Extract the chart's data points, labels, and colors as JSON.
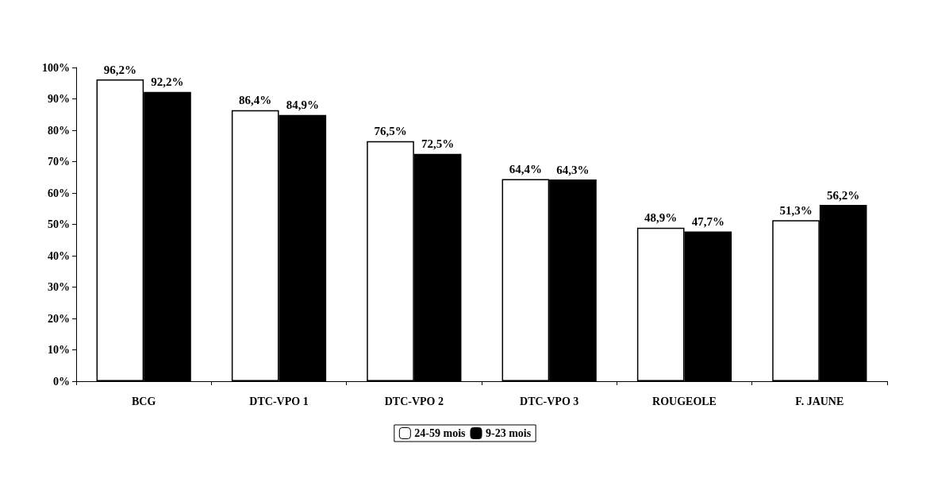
{
  "chart_data": {
    "type": "bar",
    "categories": [
      "BCG",
      "DTC-VPO 1",
      "DTC-VPO 2",
      "DTC-VPO 3",
      "ROUGEOLE",
      "F. JAUNE"
    ],
    "series": [
      {
        "name": "24-59 mois",
        "color": "#ffffff",
        "values": [
          96.2,
          86.4,
          76.5,
          64.4,
          48.9,
          51.3
        ],
        "value_labels": [
          "96,2%",
          "86,4%",
          "76,5%",
          "64,4%",
          "48,9%",
          "51,3%"
        ]
      },
      {
        "name": "9-23 mois",
        "color": "#000000",
        "values": [
          92.2,
          84.9,
          72.5,
          64.3,
          47.7,
          56.2
        ],
        "value_labels": [
          "92,2%",
          "84,9%",
          "72,5%",
          "64,3%",
          "47,7%",
          "56,2%"
        ]
      }
    ],
    "ylim": [
      0,
      100
    ],
    "yticks": [
      {
        "value": 0,
        "label": "0%"
      },
      {
        "value": 10,
        "label": "10%"
      },
      {
        "value": 20,
        "label": "20%"
      },
      {
        "value": 30,
        "label": "30%"
      },
      {
        "value": 40,
        "label": "40%"
      },
      {
        "value": 50,
        "label": "50%"
      },
      {
        "value": 60,
        "label": "60%"
      },
      {
        "value": 70,
        "label": "70%"
      },
      {
        "value": 80,
        "label": "80%"
      },
      {
        "value": 90,
        "label": "90%"
      },
      {
        "value": 100,
        "label": "100%"
      }
    ],
    "grid": false,
    "legend": "bottom"
  }
}
